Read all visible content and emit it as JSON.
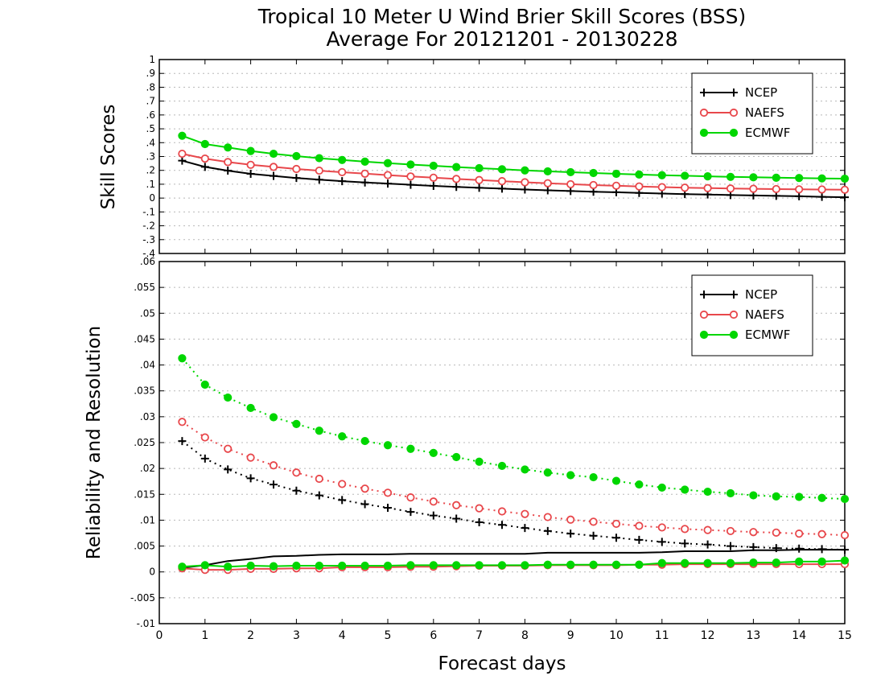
{
  "title_line1": "Tropical 10 Meter U Wind Brier Skill Scores (BSS)",
  "title_line2": "Average For 20121201 - 20130228",
  "xlabel": "Forecast days",
  "colors": {
    "NCEP": "#000000",
    "NAEFS": "#e8474b",
    "ECMWF": "#00d600",
    "grid": "#b8b8b8"
  },
  "chart_data": [
    {
      "type": "line",
      "panel": "top",
      "ylabel": "Skill Scores",
      "xlim": [
        0,
        15
      ],
      "ylim": [
        -0.4,
        1
      ],
      "xticks": [
        0,
        1,
        2,
        3,
        4,
        5,
        6,
        7,
        8,
        9,
        10,
        11,
        12,
        13,
        14,
        15
      ],
      "yticks": [
        -0.4,
        -0.3,
        -0.2,
        -0.1,
        0,
        0.1,
        0.2,
        0.3,
        0.4,
        0.5,
        0.6,
        0.7,
        0.8,
        0.9,
        1
      ],
      "grid": true,
      "legend_position": "top-right",
      "x": [
        0.5,
        1,
        1.5,
        2,
        2.5,
        3,
        3.5,
        4,
        4.5,
        5,
        5.5,
        6,
        6.5,
        7,
        7.5,
        8,
        8.5,
        9,
        9.5,
        10,
        10.5,
        11,
        11.5,
        12,
        12.5,
        13,
        13.5,
        14,
        14.5,
        15
      ],
      "series": [
        {
          "name": "NCEP",
          "marker": "plus",
          "style": "solid",
          "values": [
            0.27,
            0.225,
            0.198,
            0.175,
            0.16,
            0.145,
            0.133,
            0.122,
            0.113,
            0.105,
            0.096,
            0.088,
            0.081,
            0.074,
            0.068,
            0.062,
            0.056,
            0.051,
            0.046,
            0.042,
            0.037,
            0.033,
            0.029,
            0.026,
            0.022,
            0.019,
            0.016,
            0.013,
            0.009,
            0.006
          ]
        },
        {
          "name": "NAEFS",
          "marker": "open-circle",
          "style": "solid",
          "values": [
            0.32,
            0.285,
            0.26,
            0.24,
            0.225,
            0.21,
            0.198,
            0.187,
            0.176,
            0.166,
            0.156,
            0.147,
            0.138,
            0.13,
            0.122,
            0.114,
            0.107,
            0.1,
            0.094,
            0.089,
            0.084,
            0.079,
            0.075,
            0.072,
            0.069,
            0.067,
            0.065,
            0.063,
            0.062,
            0.06
          ]
        },
        {
          "name": "ECMWF",
          "marker": "filled-circle",
          "style": "solid",
          "values": [
            0.45,
            0.39,
            0.365,
            0.34,
            0.32,
            0.303,
            0.288,
            0.275,
            0.263,
            0.252,
            0.242,
            0.233,
            0.224,
            0.216,
            0.208,
            0.2,
            0.193,
            0.187,
            0.181,
            0.175,
            0.17,
            0.165,
            0.161,
            0.157,
            0.153,
            0.15,
            0.147,
            0.145,
            0.142,
            0.14
          ]
        }
      ]
    },
    {
      "type": "line",
      "panel": "bottom",
      "ylabel": "Reliability and Resolution",
      "xlim": [
        0,
        15
      ],
      "ylim": [
        -0.01,
        0.06
      ],
      "xticks": [
        0,
        1,
        2,
        3,
        4,
        5,
        6,
        7,
        8,
        9,
        10,
        11,
        12,
        13,
        14,
        15
      ],
      "yticks": [
        -0.01,
        -0.005,
        0,
        0.005,
        0.01,
        0.015,
        0.02,
        0.025,
        0.03,
        0.035,
        0.04,
        0.045,
        0.05,
        0.055,
        0.06
      ],
      "grid": true,
      "legend_position": "top-right",
      "x": [
        0.5,
        1,
        1.5,
        2,
        2.5,
        3,
        3.5,
        4,
        4.5,
        5,
        5.5,
        6,
        6.5,
        7,
        7.5,
        8,
        8.5,
        9,
        9.5,
        10,
        10.5,
        11,
        11.5,
        12,
        12.5,
        13,
        13.5,
        14,
        14.5,
        15
      ],
      "series": [
        {
          "name": "NCEP",
          "legend": true,
          "marker": "plus",
          "style": "dotted",
          "values": [
            0.0253,
            0.0219,
            0.0198,
            0.0181,
            0.0169,
            0.0157,
            0.0148,
            0.0139,
            0.0131,
            0.0124,
            0.0116,
            0.0109,
            0.0103,
            0.0096,
            0.0091,
            0.0085,
            0.0079,
            0.0074,
            0.007,
            0.0066,
            0.0062,
            0.0058,
            0.0055,
            0.0053,
            0.005,
            0.0048,
            0.0046,
            0.0045,
            0.0044,
            0.0043
          ]
        },
        {
          "name": "NAEFS",
          "legend": true,
          "marker": "open-circle",
          "style": "dotted",
          "values": [
            0.029,
            0.026,
            0.0238,
            0.0221,
            0.0206,
            0.0192,
            0.018,
            0.017,
            0.0161,
            0.0153,
            0.0144,
            0.0136,
            0.0129,
            0.0123,
            0.0117,
            0.0112,
            0.0106,
            0.0101,
            0.0097,
            0.0093,
            0.0089,
            0.0086,
            0.0083,
            0.0081,
            0.0079,
            0.0077,
            0.0076,
            0.0074,
            0.0073,
            0.0071
          ]
        },
        {
          "name": "ECMWF",
          "legend": true,
          "marker": "filled-circle",
          "style": "dotted",
          "values": [
            0.0413,
            0.0362,
            0.0337,
            0.0317,
            0.0299,
            0.0286,
            0.0273,
            0.0262,
            0.0253,
            0.0245,
            0.0238,
            0.023,
            0.0222,
            0.0213,
            0.0205,
            0.0198,
            0.0192,
            0.0187,
            0.0183,
            0.0176,
            0.0169,
            0.0163,
            0.0159,
            0.0155,
            0.0152,
            0.0148,
            0.0146,
            0.0145,
            0.0143,
            0.0141
          ]
        },
        {
          "name": "NCEP",
          "legend": false,
          "marker": "none",
          "style": "solid",
          "values": [
            0.0008,
            0.0013,
            0.0021,
            0.0025,
            0.003,
            0.0031,
            0.0033,
            0.0034,
            0.0034,
            0.0034,
            0.0035,
            0.0035,
            0.0035,
            0.0035,
            0.0035,
            0.0035,
            0.0037,
            0.0037,
            0.0037,
            0.0037,
            0.0037,
            0.0038,
            0.004,
            0.004,
            0.004,
            0.0042,
            0.0042,
            0.0043,
            0.0043,
            0.0043
          ]
        },
        {
          "name": "NAEFS",
          "legend": false,
          "marker": "open-circle",
          "style": "solid",
          "values": [
            0.0007,
            0.0004,
            0.0004,
            0.0006,
            0.0006,
            0.0007,
            0.0007,
            0.0009,
            0.0009,
            0.0009,
            0.001,
            0.001,
            0.0011,
            0.0012,
            0.0012,
            0.0012,
            0.0013,
            0.0013,
            0.0013,
            0.0013,
            0.0014,
            0.0014,
            0.0015,
            0.0015,
            0.0015,
            0.0015,
            0.0015,
            0.0015,
            0.0015,
            0.0015
          ]
        },
        {
          "name": "ECMWF",
          "legend": false,
          "marker": "filled-circle",
          "style": "solid",
          "values": [
            0.001,
            0.0013,
            0.001,
            0.0012,
            0.0011,
            0.0012,
            0.0012,
            0.0012,
            0.0012,
            0.0012,
            0.0013,
            0.0013,
            0.0013,
            0.0013,
            0.0013,
            0.0013,
            0.0014,
            0.0014,
            0.0014,
            0.0014,
            0.0014,
            0.0017,
            0.0017,
            0.0017,
            0.0017,
            0.0018,
            0.0018,
            0.002,
            0.002,
            0.0022
          ]
        }
      ]
    }
  ]
}
